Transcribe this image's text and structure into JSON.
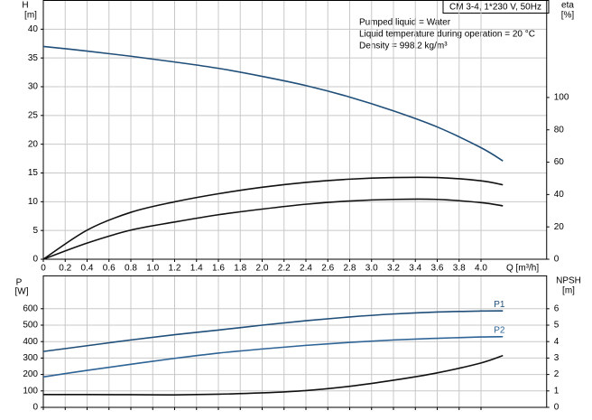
{
  "chart_data": [
    {
      "type": "line",
      "title": "CM 3-4, 1*230 V, 50Hz",
      "annotations": [
        "Pumped liquid = Water",
        "Liquid temperature during operation = 20 °C",
        "Density = 998.2 kg/m³"
      ],
      "ylabel": "H",
      "yunit": "[m]",
      "y2label": "eta",
      "y2unit": "[%]",
      "xlabel": "Q [m³/h]",
      "x": [
        0,
        0.4,
        0.8,
        1.2,
        1.6,
        2.0,
        2.4,
        2.8,
        3.2,
        3.6,
        4.0,
        4.2
      ],
      "xlim": [
        0,
        4.6
      ],
      "xticks": [
        0,
        0.2,
        0.4,
        0.6,
        0.8,
        {
          "value": 1,
          "label": "1.0"
        },
        1.2,
        1.4,
        1.6,
        1.8,
        {
          "value": 2,
          "label": "2.0"
        },
        2.2,
        2.4,
        2.6,
        2.8,
        {
          "value": 3,
          "label": "3.0"
        },
        3.2,
        3.4,
        3.6,
        3.8,
        {
          "value": 4,
          "label": "4.0"
        }
      ],
      "ylim": [
        0,
        45
      ],
      "yticks": [
        0,
        5,
        10,
        15,
        20,
        25,
        30,
        35,
        40
      ],
      "y2lim": [
        0,
        160
      ],
      "y2ticks": [
        0,
        20,
        40,
        60,
        80,
        100
      ],
      "grid": true,
      "series": [
        {
          "color": "#1f4e79",
          "values": [
            37,
            36.2,
            35.3,
            34.3,
            33.2,
            31.8,
            30.2,
            28.2,
            25.8,
            23.0,
            19.4,
            17.1
          ]
        },
        {
          "color": "#111111",
          "axis": "y2",
          "values": [
            0,
            18,
            29,
            35.5,
            40.5,
            44.5,
            47.5,
            49.5,
            50.5,
            50.5,
            48.5,
            46
          ]
        },
        {
          "color": "#111111",
          "axis": "y2",
          "values": [
            0,
            10,
            18,
            23,
            27.5,
            31,
            34,
            36,
            37,
            37,
            35,
            33
          ]
        }
      ]
    },
    {
      "type": "line",
      "ylabel": "P",
      "yunit": "[W]",
      "y2label": "NPSH",
      "y2unit": "[m]",
      "x": [
        0,
        0.4,
        0.8,
        1.2,
        1.6,
        2.0,
        2.4,
        2.8,
        3.2,
        3.6,
        4.0,
        4.2
      ],
      "xlim": [
        0,
        4.6
      ],
      "xticks": [
        0,
        0.2,
        0.4,
        0.6,
        0.8,
        1,
        1.2,
        1.4,
        1.6,
        1.8,
        2,
        2.2,
        2.4,
        2.6,
        2.8,
        3,
        3.2,
        3.4,
        3.6,
        3.8,
        4
      ],
      "show_xtick_labels": false,
      "ylim": [
        0,
        800
      ],
      "yticks": [
        0,
        100,
        200,
        300,
        400,
        500,
        600
      ],
      "y2lim": [
        0,
        8
      ],
      "y2ticks": [
        0,
        1,
        2,
        3,
        4,
        5,
        6
      ],
      "grid": true,
      "series": [
        {
          "name": "P1",
          "color": "#1f4e79",
          "values": [
            340,
            375,
            410,
            442,
            470,
            500,
            527,
            550,
            568,
            580,
            586,
            587
          ]
        },
        {
          "name": "P2",
          "color": "#2e6396",
          "values": [
            185,
            225,
            262,
            298,
            330,
            355,
            377,
            395,
            410,
            420,
            428,
            430
          ]
        },
        {
          "color": "#111111",
          "axis": "y2",
          "values": [
            0.78,
            0.78,
            0.77,
            0.76,
            0.8,
            0.88,
            1.02,
            1.28,
            1.65,
            2.1,
            2.7,
            3.15
          ]
        }
      ]
    }
  ]
}
